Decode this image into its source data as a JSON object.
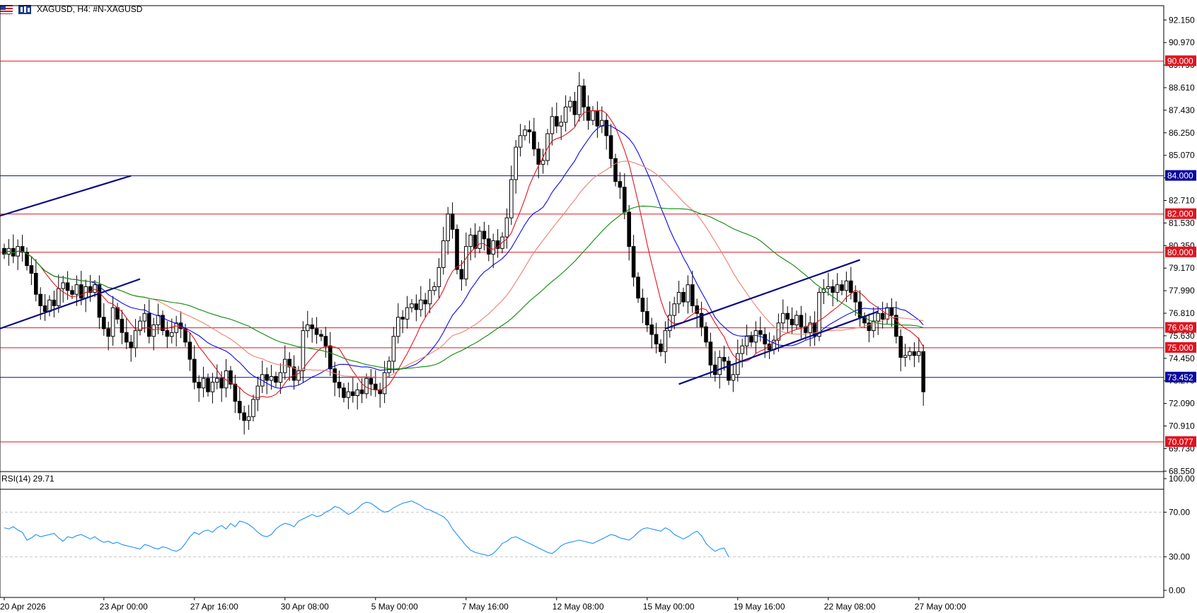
{
  "header": {
    "symbol_title": "XAGUSD, H4:  #N-XAGUSD"
  },
  "rsi": {
    "label": "RSI(14) 29.71",
    "levels": [
      "100.00",
      "70.00",
      "30.00",
      "0.00"
    ],
    "values": [
      56,
      55,
      57,
      54,
      52,
      45,
      47,
      50,
      48,
      49,
      50,
      51,
      47,
      44,
      48,
      47,
      49,
      50,
      48,
      46,
      48,
      45,
      43,
      44,
      42,
      43,
      41,
      40,
      39,
      38,
      37,
      41,
      40,
      38,
      37,
      39,
      38,
      36,
      35,
      37,
      42,
      48,
      52,
      50,
      53,
      54,
      52,
      56,
      58,
      55,
      60,
      57,
      62,
      61,
      59,
      56,
      52,
      49,
      48,
      50,
      55,
      58,
      60,
      59,
      57,
      62,
      64,
      66,
      68,
      66,
      67,
      70,
      72,
      75,
      74,
      71,
      68,
      70,
      73,
      77,
      79,
      78,
      75,
      72,
      70,
      71,
      74,
      76,
      78,
      79,
      80,
      78,
      76,
      73,
      72,
      70,
      68,
      66,
      62,
      55,
      50,
      45,
      40,
      36,
      34,
      33,
      32,
      31,
      33,
      37,
      42,
      44,
      47,
      48,
      46,
      44,
      42,
      40,
      38,
      36,
      34,
      33,
      36,
      40,
      42,
      43,
      44,
      45,
      44,
      43,
      42,
      44,
      46,
      48,
      50,
      49,
      47,
      46,
      45,
      48,
      52,
      55,
      56,
      55,
      54,
      53,
      56,
      54,
      50,
      48,
      46,
      48,
      51,
      53,
      49,
      42,
      38,
      35,
      37,
      38,
      30
    ],
    "color": "#1e90ff"
  },
  "chart_data": {
    "type": "candlestick",
    "symbol": "XAGUSD",
    "timeframe": "H4",
    "ylim": [
      67.6,
      92.9
    ],
    "y_ticks": [
      "92.150",
      "90.970",
      "89.790",
      "88.610",
      "87.430",
      "86.250",
      "85.070",
      "83.890",
      "82.710",
      "81.530",
      "80.350",
      "79.170",
      "77.990",
      "76.810",
      "75.630",
      "74.450",
      "73.270",
      "72.090",
      "70.910",
      "69.730",
      "68.550"
    ],
    "x_ticks": [
      {
        "label": "20 Apr 2026",
        "index": 0
      },
      {
        "label": "23 Apr 00:00",
        "index": 22
      },
      {
        "label": "27 Apr 16:00",
        "index": 42
      },
      {
        "label": "30 Apr 08:00",
        "index": 62
      },
      {
        "label": "5 May 00:00",
        "index": 82
      },
      {
        "label": "7 May 16:00",
        "index": 102
      },
      {
        "label": "12 May 08:00",
        "index": 122
      },
      {
        "label": "15 May 00:00",
        "index": 142
      },
      {
        "label": "19 May 16:00",
        "index": 162
      },
      {
        "label": "22 May 08:00",
        "index": 182
      },
      {
        "label": "27 May 00:00",
        "index": 202
      }
    ],
    "horizontal_levels": [
      {
        "value": 90.0,
        "label": "90.000",
        "color": "#e0141e"
      },
      {
        "value": 84.0,
        "label": "84.000",
        "color": "#0a0aa0"
      },
      {
        "value": 82.0,
        "label": "82.000",
        "color": "#e0141e"
      },
      {
        "value": 80.0,
        "label": "80.000",
        "color": "#e0141e"
      },
      {
        "value": 76.049,
        "label": "76.049",
        "color": "#e0141e"
      },
      {
        "value": 75.0,
        "label": "75.000",
        "color": "#e0141e"
      },
      {
        "value": 73.452,
        "label": "73.452",
        "color": "#0a0aa0"
      },
      {
        "value": 70.077,
        "label": "70.077",
        "color": "#e0141e"
      }
    ],
    "candles_close": [
      79.9,
      80.2,
      79.8,
      80.3,
      80.0,
      79.3,
      78.9,
      77.8,
      77.2,
      76.9,
      77.5,
      77.2,
      78.1,
      78.4,
      78.0,
      77.8,
      78.3,
      77.6,
      78.2,
      77.9,
      78.3,
      76.6,
      76.0,
      75.6,
      77.1,
      76.5,
      75.8,
      75.3,
      75.0,
      75.9,
      76.4,
      76.8,
      75.6,
      76.2,
      76.7,
      75.9,
      75.6,
      75.8,
      76.3,
      76.0,
      75.3,
      74.4,
      73.2,
      72.9,
      73.4,
      72.7,
      73.2,
      73.4,
      72.9,
      73.8,
      73.1,
      72.2,
      71.6,
      71.2,
      71.4,
      72.3,
      73.0,
      73.6,
      73.3,
      73.5,
      73.2,
      73.7,
      74.4,
      74.0,
      73.3,
      73.8,
      75.9,
      76.2,
      76.0,
      75.7,
      75.6,
      75.1,
      73.9,
      73.2,
      72.9,
      72.4,
      72.7,
      72.5,
      72.8,
      72.6,
      73.4,
      73.1,
      72.8,
      72.6,
      73.7,
      74.3,
      75.6,
      76.6,
      76.5,
      77.1,
      77.3,
      77.0,
      77.5,
      77.3,
      78.0,
      78.2,
      79.2,
      80.6,
      82.0,
      81.2,
      79.1,
      78.6,
      80.3,
      80.9,
      80.2,
      81.1,
      80.7,
      79.9,
      80.6,
      80.2,
      80.8,
      81.8,
      83.8,
      85.5,
      86.1,
      86.4,
      86.3,
      85.4,
      84.6,
      84.8,
      86.2,
      87.1,
      86.6,
      86.8,
      87.6,
      87.9,
      87.2,
      88.7,
      87.6,
      86.9,
      87.4,
      86.6,
      86.9,
      86.1,
      84.9,
      83.7,
      83.4,
      82.1,
      80.3,
      78.7,
      77.6,
      76.9,
      76.2,
      75.7,
      75.2,
      74.8,
      75.9,
      76.7,
      77.3,
      77.9,
      77.4,
      78.3,
      77.2,
      76.8,
      76.1,
      75.3,
      74.1,
      73.6,
      74.5,
      74.3,
      73.3,
      73.6,
      74.7,
      75.1,
      75.6,
      75.3,
      75.9,
      75.7,
      75.2,
      74.9,
      75.4,
      76.3,
      76.8,
      76.5,
      76.2,
      76.7,
      76.1,
      75.8,
      76.3,
      75.6,
      77.9,
      78.1,
      78.2,
      77.9,
      78.3,
      78.0,
      78.5,
      77.9,
      77.4,
      76.6,
      76.3,
      75.9,
      76.4,
      76.8,
      76.5,
      77.1,
      76.7,
      75.6,
      74.5,
      74.6,
      74.8,
      74.6,
      74.8,
      72.7
    ]
  },
  "colors": {
    "bull_candle": "#ffffff",
    "bear_candle": "#000000",
    "ma_fast": "#e0141e",
    "ma_mid": "#0a0ae6",
    "ma_slow": "#f08070",
    "ma_long": "#0a8a0a",
    "trend_line": "#0a0a80",
    "grid": "#c8c8c8"
  }
}
